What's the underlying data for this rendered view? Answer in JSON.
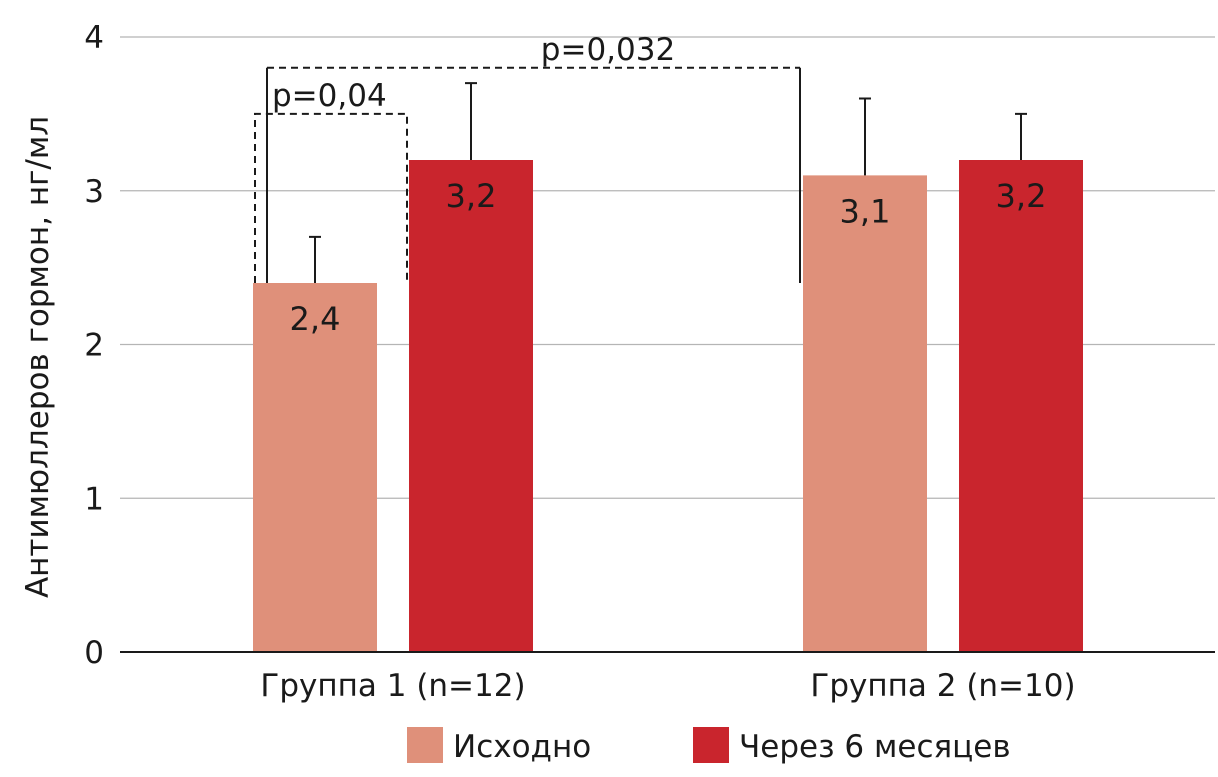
{
  "chart_data": {
    "type": "bar",
    "ylabel": "Антимюллеров гормон, нг/мл",
    "ylim": [
      0,
      4
    ],
    "yticks": [
      "0",
      "1",
      "2",
      "3",
      "4"
    ],
    "grid": true,
    "legend_position": "bottom",
    "categories": [
      "Группа 1 (n=12)",
      "Группа 2 (n=10)"
    ],
    "series": [
      {
        "name": "Исходно",
        "color": "#df907a",
        "values": [
          2.4,
          3.1
        ],
        "errors": [
          0.3,
          0.5
        ],
        "labels": [
          "2,4",
          "3,1"
        ]
      },
      {
        "name": "Через 6 месяцев",
        "color": "#c9252d",
        "values": [
          3.2,
          3.2
        ],
        "errors": [
          0.5,
          0.3
        ],
        "labels": [
          "3,2",
          "3,2"
        ]
      }
    ],
    "annotations": [
      {
        "text": "p=0,04",
        "level": 3.5
      },
      {
        "text": "p=0,032",
        "level": 3.8
      }
    ]
  }
}
